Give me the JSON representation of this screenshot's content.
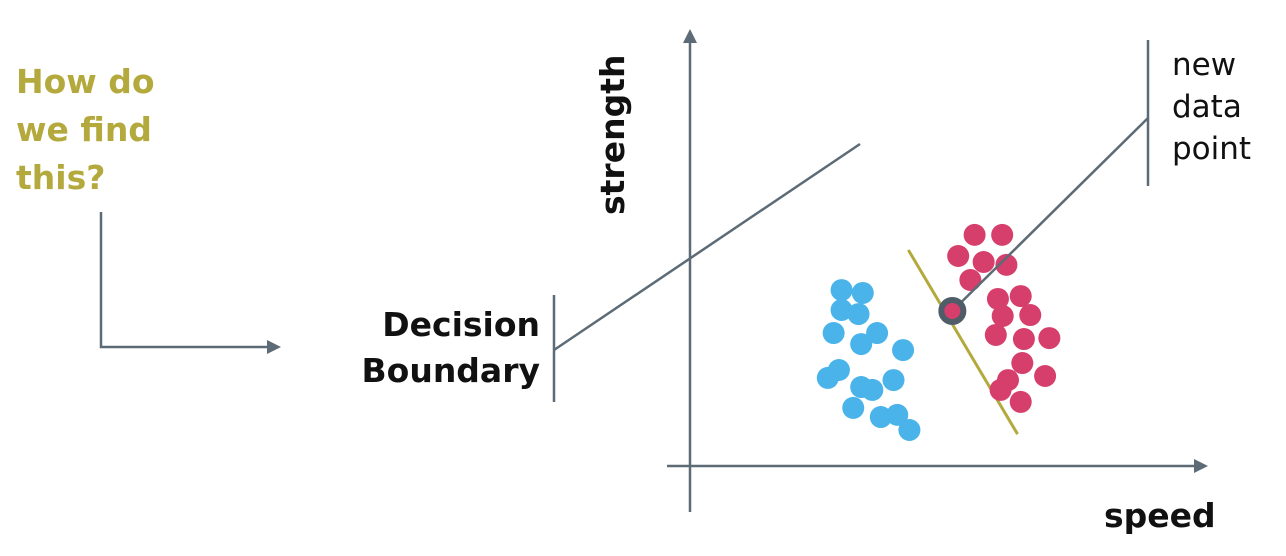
{
  "question": {
    "lines": [
      "How do",
      "we find",
      "this?"
    ]
  },
  "decision_boundary_label": {
    "lines": [
      "Decision",
      "Boundary"
    ]
  },
  "new_point_label": {
    "lines": [
      "new",
      "data",
      "point"
    ]
  },
  "axes": {
    "x_label": "speed",
    "y_label": "strength"
  },
  "colors": {
    "question": "#b4a93d",
    "boundary": "#b4a93d",
    "class_blue": "#49b3ea",
    "class_pink": "#d63f6c",
    "axis": "#5c6b75",
    "new_point_ring": "#4f5d68"
  },
  "chart_data": {
    "type": "scatter",
    "xlabel": "speed",
    "ylabel": "strength",
    "xlim": [
      0,
      100
    ],
    "ylim": [
      0,
      100
    ],
    "series": [
      {
        "points": [
          [
            28.6,
            73.3
          ],
          [
            32.6,
            72.1
          ],
          [
            28.6,
            65.0
          ],
          [
            31.8,
            63.3
          ],
          [
            27.1,
            55.4
          ],
          [
            35.3,
            55.4
          ],
          [
            32.3,
            50.8
          ],
          [
            40.2,
            48.3
          ],
          [
            28.1,
            40.0
          ],
          [
            26.0,
            36.7
          ],
          [
            38.4,
            35.8
          ],
          [
            32.3,
            32.9
          ],
          [
            34.4,
            31.7
          ],
          [
            30.8,
            24.2
          ],
          [
            36.0,
            20.4
          ],
          [
            39.1,
            21.3
          ],
          [
            41.4,
            15.0
          ]
        ]
      },
      {
        "points": [
          [
            53.7,
            96.3
          ],
          [
            58.9,
            96.3
          ],
          [
            50.6,
            87.5
          ],
          [
            55.4,
            85.0
          ],
          [
            59.7,
            83.8
          ],
          [
            52.9,
            77.5
          ],
          [
            62.4,
            70.8
          ],
          [
            58.1,
            69.6
          ],
          [
            59.0,
            62.5
          ],
          [
            64.2,
            62.9
          ],
          [
            57.7,
            54.6
          ],
          [
            63.0,
            52.9
          ],
          [
            67.8,
            53.3
          ],
          [
            62.7,
            42.9
          ],
          [
            60.0,
            35.8
          ],
          [
            67.0,
            37.5
          ],
          [
            62.4,
            26.7
          ],
          [
            58.6,
            31.7
          ]
        ]
      }
    ],
    "new_point": [
      49.5,
      64.6
    ],
    "decision_boundary": [
      [
        41.2,
        90.0
      ],
      [
        61.8,
        13.3
      ]
    ]
  }
}
